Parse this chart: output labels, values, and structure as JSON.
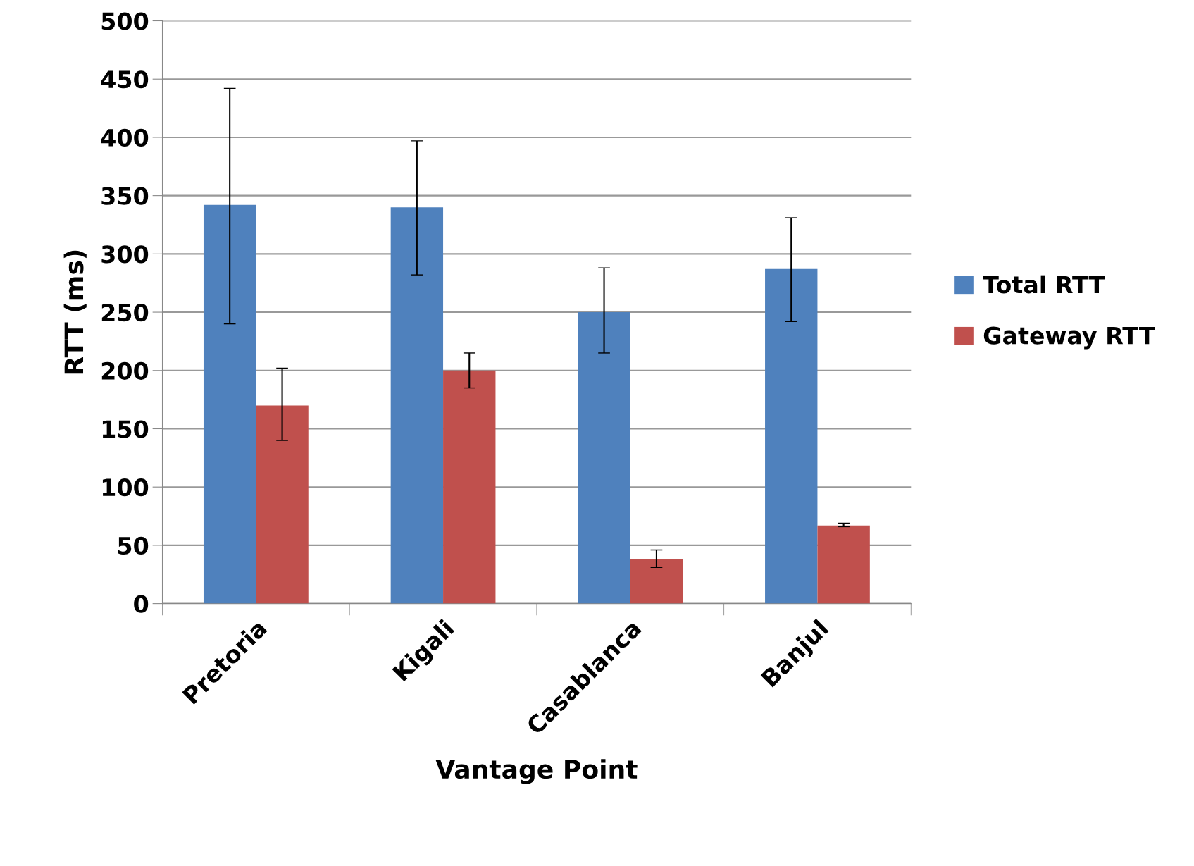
{
  "chart_data": {
    "type": "bar",
    "xlabel": "Vantage Point",
    "ylabel": "RTT (ms)",
    "categories": [
      "Pretoria",
      "Kigali",
      "Casablanca",
      "Banjul"
    ],
    "series": [
      {
        "name": "Total RTT",
        "color": "#4f81bd",
        "values": [
          342,
          340,
          250,
          287
        ],
        "errors": [
          [
            240,
            442
          ],
          [
            282,
            397
          ],
          [
            215,
            288
          ],
          [
            242,
            331
          ]
        ]
      },
      {
        "name": "Gateway RTT",
        "color": "#c0504d",
        "values": [
          170,
          200,
          38,
          67
        ],
        "errors": [
          [
            140,
            202
          ],
          [
            185,
            215
          ],
          [
            31,
            46
          ],
          [
            66,
            69
          ]
        ]
      }
    ],
    "ylim": [
      0,
      500
    ],
    "yticks": [
      0,
      50,
      100,
      150,
      200,
      250,
      300,
      350,
      400,
      450,
      500
    ],
    "grid": "y",
    "legend": "right"
  }
}
